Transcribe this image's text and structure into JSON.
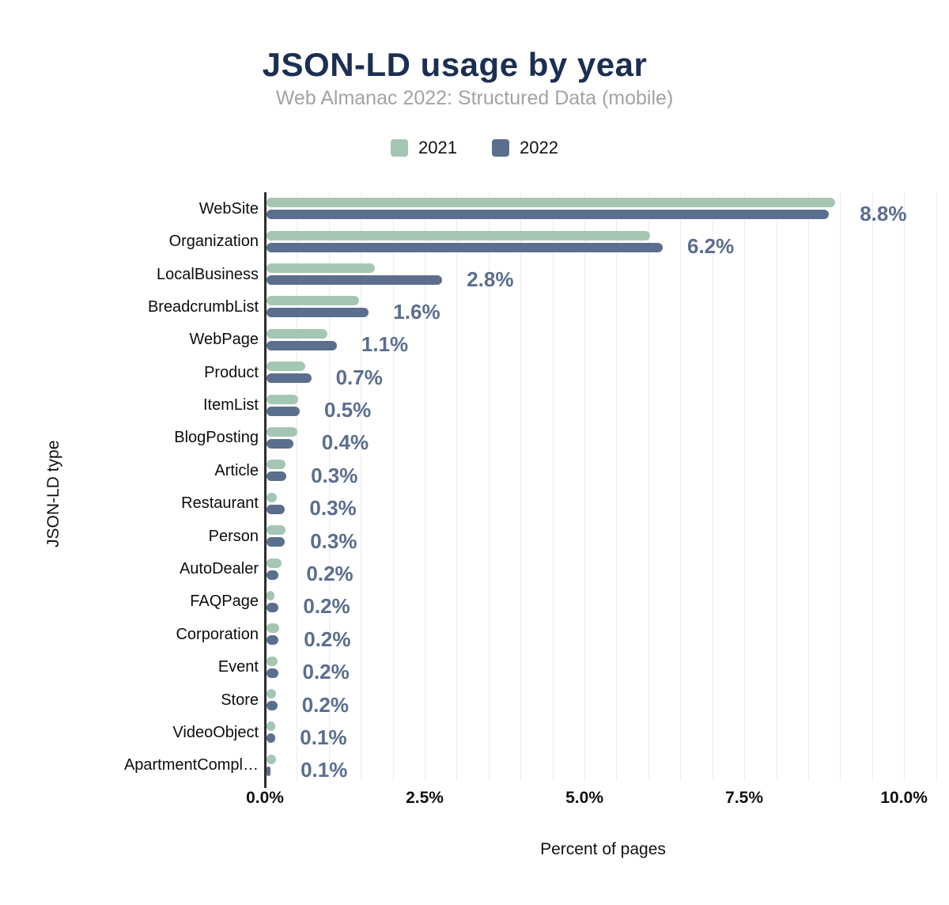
{
  "header": {
    "title": "JSON-LD usage by year",
    "subtitle": "Web Almanac 2022: Structured Data (mobile)"
  },
  "colors": {
    "series_2021": "#a5c6b3",
    "series_2022": "#5b6e8e",
    "title": "#1c2f52",
    "subtitle": "#a3a3a3",
    "value_label": "#5b6e8e",
    "gridline": "#ececec",
    "axis_line": "#2e2e2e"
  },
  "chart_data": {
    "type": "bar",
    "orientation": "horizontal",
    "title": "JSON-LD usage by year",
    "subtitle": "Web Almanac 2022: Structured Data (mobile)",
    "xlabel": "Percent of pages",
    "ylabel": "JSON-LD type",
    "xlim": [
      0,
      10.58
    ],
    "x_ticks": [
      {
        "value": 0,
        "label": "0.0%"
      },
      {
        "value": 2.5,
        "label": "2.5%"
      },
      {
        "value": 5,
        "label": "5.0%"
      },
      {
        "value": 7.5,
        "label": "7.5%"
      },
      {
        "value": 10,
        "label": "10.0%"
      }
    ],
    "grid": "vertical gridlines every 0.5%",
    "legend_position": "top-center",
    "categories": [
      "WebSite",
      "Organization",
      "LocalBusiness",
      "BreadcrumbList",
      "WebPage",
      "Product",
      "ItemList",
      "BlogPosting",
      "Article",
      "Restaurant",
      "Person",
      "AutoDealer",
      "FAQPage",
      "Corporation",
      "Event",
      "Store",
      "VideoObject",
      "ApartmentCompl…"
    ],
    "series": [
      {
        "name": "2021",
        "color": "#a5c6b3",
        "values": [
          8.9,
          6.0,
          1.7,
          1.45,
          0.95,
          0.6,
          0.5,
          0.48,
          0.3,
          0.16,
          0.3,
          0.24,
          0.12,
          0.2,
          0.17,
          0.15,
          0.14,
          0.15
        ]
      },
      {
        "name": "2022",
        "color": "#5b6e8e",
        "values": [
          8.8,
          6.2,
          2.75,
          1.6,
          1.1,
          0.7,
          0.52,
          0.42,
          0.31,
          0.29,
          0.28,
          0.19,
          0.19,
          0.18,
          0.18,
          0.17,
          0.13,
          0.06
        ]
      }
    ],
    "value_labels": [
      "8.8%",
      "6.2%",
      "2.8%",
      "1.6%",
      "1.1%",
      "0.7%",
      "0.5%",
      "0.4%",
      "0.3%",
      "0.3%",
      "0.3%",
      "0.2%",
      "0.2%",
      "0.2%",
      "0.2%",
      "0.2%",
      "0.1%",
      "0.1%"
    ],
    "value_labels_source": "2022 series"
  }
}
